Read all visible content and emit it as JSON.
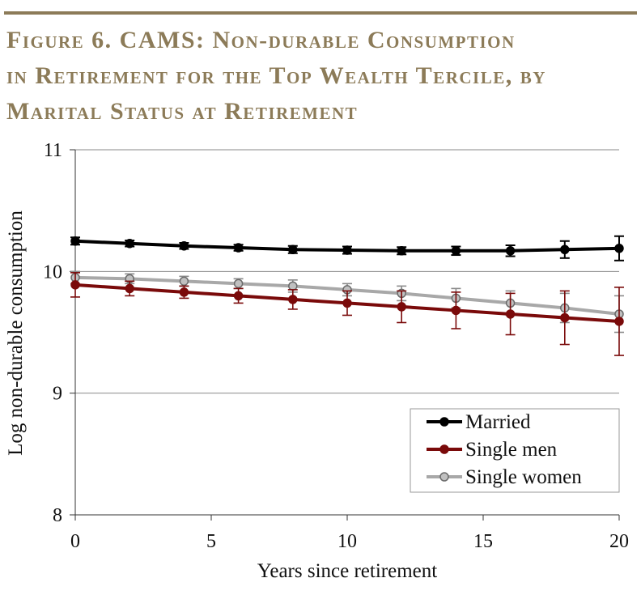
{
  "figure": {
    "title_lines": [
      "Figure 6. CAMS: Non-durable Consumption",
      "in Retirement for the Top Wealth Tercile, by",
      "Marital Status at Retirement"
    ],
    "accent_color": "#8c7b58"
  },
  "chart_data": {
    "type": "line",
    "xlabel": "Years since retirement",
    "ylabel": "Log non-durable consumption",
    "xlim": [
      0,
      20
    ],
    "ylim": [
      8,
      11
    ],
    "xticks": [
      0,
      5,
      10,
      15,
      20
    ],
    "yticks": [
      8,
      9,
      10,
      11
    ],
    "grid": "horizontal",
    "legend_position": "bottom-right",
    "x": [
      0,
      2,
      4,
      6,
      8,
      10,
      12,
      14,
      16,
      18,
      20
    ],
    "series": [
      {
        "name": "Married",
        "color": "#000000",
        "values": [
          10.25,
          10.23,
          10.21,
          10.195,
          10.18,
          10.175,
          10.17,
          10.17,
          10.17,
          10.18,
          10.19
        ],
        "error": [
          0.03,
          0.025,
          0.025,
          0.025,
          0.03,
          0.03,
          0.03,
          0.035,
          0.045,
          0.07,
          0.1
        ]
      },
      {
        "name": "Single men",
        "color": "#7a0a0a",
        "values": [
          9.89,
          9.86,
          9.83,
          9.8,
          9.77,
          9.74,
          9.71,
          9.68,
          9.65,
          9.62,
          9.59
        ],
        "error": [
          0.1,
          0.06,
          0.05,
          0.06,
          0.08,
          0.1,
          0.13,
          0.15,
          0.17,
          0.22,
          0.28
        ]
      },
      {
        "name": "Single women",
        "color": "#a8a8a8",
        "values": [
          9.95,
          9.94,
          9.92,
          9.9,
          9.88,
          9.85,
          9.82,
          9.78,
          9.74,
          9.7,
          9.65
        ],
        "error": [
          0.05,
          0.04,
          0.04,
          0.04,
          0.05,
          0.05,
          0.06,
          0.08,
          0.1,
          0.12,
          0.15
        ]
      }
    ]
  }
}
